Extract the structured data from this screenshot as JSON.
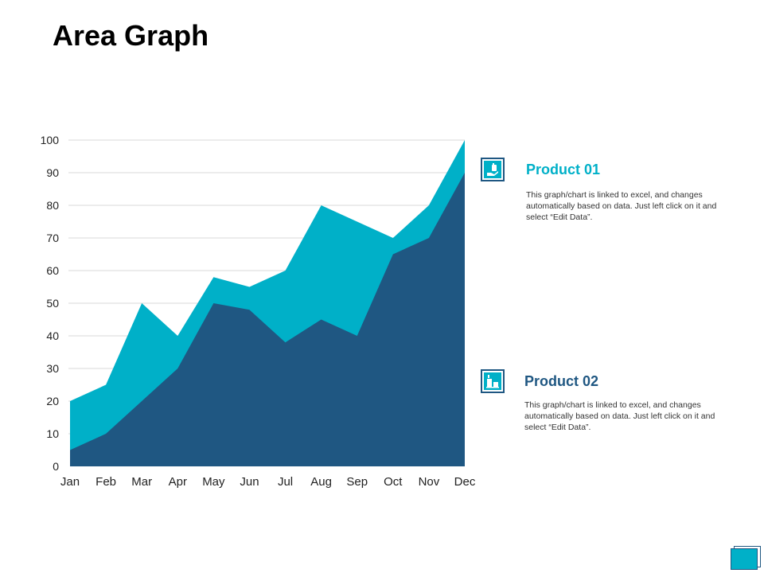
{
  "page": {
    "title": "Area Graph"
  },
  "colors": {
    "product01": "#00b0c8",
    "product02": "#1f5782",
    "grid": "#d9d9d9"
  },
  "legend": [
    {
      "heading": "Product 01",
      "description": "This graph/chart is linked to excel, and changes automatically based on data. Just left click on it and select “Edit Data”.",
      "icon": "hand-holding-icon"
    },
    {
      "heading": "Product 02",
      "description": "This graph/chart is linked to excel, and changes automatically based on data. Just left click on it and select “Edit Data”.",
      "icon": "chart-bars-icon"
    }
  ],
  "chart_data": {
    "type": "area",
    "title": "Area Graph",
    "xlabel": "",
    "ylabel": "",
    "categories": [
      "Jan",
      "Feb",
      "Mar",
      "Apr",
      "May",
      "Jun",
      "Jul",
      "Aug",
      "Sep",
      "Oct",
      "Nov",
      "Dec"
    ],
    "ylim": [
      0,
      100
    ],
    "yticks": [
      0,
      10,
      20,
      30,
      40,
      50,
      60,
      70,
      80,
      90,
      100
    ],
    "grid": true,
    "legend_position": "right",
    "series": [
      {
        "name": "Product 01",
        "values": [
          20,
          25,
          50,
          40,
          58,
          55,
          60,
          80,
          75,
          70,
          80,
          100
        ]
      },
      {
        "name": "Product 02",
        "values": [
          5,
          10,
          20,
          30,
          50,
          48,
          38,
          45,
          40,
          65,
          70,
          90
        ]
      }
    ]
  }
}
